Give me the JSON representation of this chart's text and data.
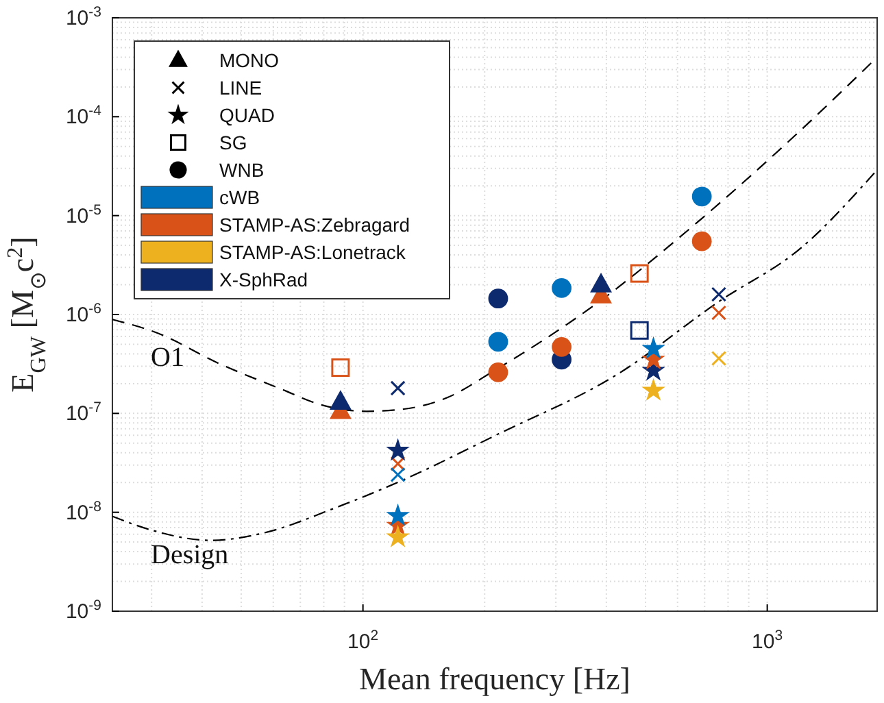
{
  "chart_data": {
    "type": "scatter",
    "xlabel": "Mean frequency [Hz]",
    "ylabel": "E$_{GW}$ [M$_{⊙}$c$^{2}$]",
    "log": "xy",
    "grid": true,
    "legend": "top left",
    "xlim": [
      24,
      1870
    ],
    "ylim": [
      1e-09,
      0.001
    ],
    "xticks": [
      {
        "value": 100,
        "label": "10$^{2}$"
      },
      {
        "value": 1000,
        "label": "10$^{3}$"
      }
    ],
    "yticks": [
      {
        "value": 1e-09,
        "label": "10$^{-9}$"
      },
      {
        "value": 1e-08,
        "label": "10$^{-8}$"
      },
      {
        "value": 1e-07,
        "label": "10$^{-7}$"
      },
      {
        "value": 1e-06,
        "label": "10$^{-6}$"
      },
      {
        "value": 1e-05,
        "label": "10$^{-5}$"
      },
      {
        "value": 0.0001,
        "label": "10$^{-4}$"
      },
      {
        "value": 0.001,
        "label": "10$^{-3}$"
      }
    ],
    "annotations": [
      "O1",
      "Design"
    ],
    "series": [
      {
        "type": "line",
        "color": "#000000",
        "line_style": "dashed",
        "x": [
          24,
          31,
          44,
          62,
          80,
          102,
          125,
          162,
          211,
          384,
          661,
          1159,
          1870
        ],
        "values": [
          8.9e-07,
          6.5e-07,
          3.2e-07,
          1.8e-07,
          1.2e-07,
          1.05e-07,
          1.1e-07,
          1.45e-07,
          2.7e-07,
          1.35e-06,
          8.1e-06,
          6.2e-05,
          0.0004
        ]
      },
      {
        "type": "line",
        "color": "#000000",
        "line_style": "dashdot",
        "x": [
          24,
          30,
          42,
          57,
          85,
          125,
          211,
          427,
          759,
          1219,
          1870
        ],
        "values": [
          9.1e-09,
          6.6e-09,
          5.2e-09,
          6.2e-09,
          1.1e-08,
          2.1e-08,
          5.9e-08,
          2.5e-07,
          1.35e-06,
          4.8e-06,
          2.9e-05
        ]
      },
      {
        "name": "MONO",
        "color": "#000000",
        "marker": "triangle"
      },
      {
        "name": "LINE",
        "color": "#000000",
        "marker": "cross"
      },
      {
        "name": "QUAD",
        "color": "#000000",
        "marker": "star"
      },
      {
        "name": "SG",
        "color": "#000000",
        "marker": "square"
      },
      {
        "name": "WNB",
        "color": "#000000",
        "marker": "circle"
      },
      {
        "name": "cWB",
        "color": "#0072bd",
        "marker": "none"
      },
      {
        "name": "STAMP-AS:Zebragard",
        "color": "#d95319",
        "marker": "none"
      },
      {
        "name": "STAMP-AS:Lonetrack",
        "color": "#edb120",
        "marker": "none"
      },
      {
        "name": "X-SphRad",
        "color": "#0e2a6e",
        "marker": "none"
      },
      {
        "color": "#d95319",
        "marker": "triangle",
        "x": [
          88,
          388
        ],
        "values": [
          1.05e-07,
          1.55e-06
        ]
      },
      {
        "color": "#0e2a6e",
        "marker": "triangle",
        "x": [
          88,
          388
        ],
        "values": [
          1.3e-07,
          2e-06
        ]
      },
      {
        "color": "#d95319",
        "marker": "cross",
        "x": [
          122,
          759
        ],
        "values": [
          3.1e-08,
          1.04e-06
        ]
      },
      {
        "color": "#0e2a6e",
        "marker": "cross",
        "x": [
          122,
          759
        ],
        "values": [
          1.8e-07,
          1.6e-06
        ]
      },
      {
        "color": "#0072bd",
        "marker": "cross",
        "x": [
          122
        ],
        "values": [
          2.4e-08
        ]
      },
      {
        "color": "#edb120",
        "marker": "cross",
        "x": [
          759
        ],
        "values": [
          3.6e-07
        ]
      },
      {
        "color": "#0e2a6e",
        "marker": "star",
        "x": [
          122,
          523
        ],
        "values": [
          4.2e-08,
          2.7e-07
        ]
      },
      {
        "color": "#d95319",
        "marker": "star",
        "x": [
          122,
          523
        ],
        "values": [
          7.3e-09,
          3.5e-07
        ]
      },
      {
        "color": "#0072bd",
        "marker": "star",
        "x": [
          122,
          523
        ],
        "values": [
          9.2e-09,
          4.5e-07
        ]
      },
      {
        "color": "#edb120",
        "marker": "star",
        "x": [
          122,
          523
        ],
        "values": [
          5.6e-09,
          1.7e-07
        ]
      },
      {
        "color": "#d95319",
        "marker": "square",
        "x": [
          88,
          483
        ],
        "values": [
          2.9e-07,
          2.6e-06
        ]
      },
      {
        "color": "#0e2a6e",
        "marker": "square",
        "x": [
          483
        ],
        "values": [
          6.9e-07
        ]
      },
      {
        "color": "#0e2a6e",
        "marker": "circle",
        "x": [
          216,
          310
        ],
        "values": [
          1.45e-06,
          3.5e-07
        ]
      },
      {
        "color": "#d95319",
        "marker": "circle",
        "x": [
          216,
          310,
          689
        ],
        "values": [
          2.6e-07,
          4.7e-07,
          5.5e-06
        ]
      },
      {
        "color": "#0072bd",
        "marker": "circle",
        "x": [
          216,
          310,
          689
        ],
        "values": [
          5.3e-07,
          1.85e-06,
          1.56e-05
        ]
      }
    ]
  }
}
